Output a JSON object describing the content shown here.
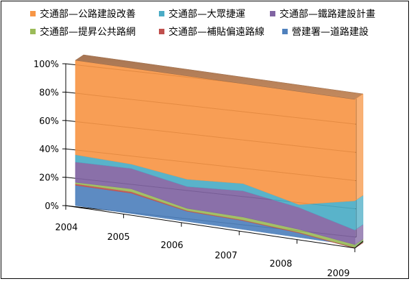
{
  "chart_data": {
    "type": "area",
    "stacked": "percent",
    "three_d": true,
    "categories": [
      "2004",
      "2005",
      "2006",
      "2007",
      "2008",
      "2009"
    ],
    "yticks": [
      "0%",
      "20%",
      "40%",
      "60%",
      "80%",
      "100%"
    ],
    "ylim": [
      0,
      100
    ],
    "grid": true,
    "legend_position": "top",
    "series": [
      {
        "name": "營建署—道路建設",
        "color": "#4f81bd",
        "values": [
          14,
          14,
          7,
          6,
          3,
          -2
        ]
      },
      {
        "name": "交通部—補貼偏遠路線",
        "color": "#c0504d",
        "values": [
          1,
          1,
          0.5,
          0.5,
          0.5,
          0.5
        ]
      },
      {
        "name": "交通部—提昇公共路網",
        "color": "#9bbb59",
        "values": [
          1,
          2,
          1.5,
          2,
          2,
          2
        ]
      },
      {
        "name": "交通部—鐵路建設計畫",
        "color": "#8064a2",
        "values": [
          14,
          14,
          15,
          18,
          15,
          10
        ]
      },
      {
        "name": "交通部—大眾捷運",
        "color": "#4bacc6",
        "values": [
          5,
          3,
          5,
          5,
          2,
          20
        ]
      },
      {
        "name": "交通部—公路建設改善",
        "color": "#f79646",
        "values": [
          65,
          66,
          71,
          68.5,
          77.5,
          69.5
        ]
      }
    ]
  }
}
